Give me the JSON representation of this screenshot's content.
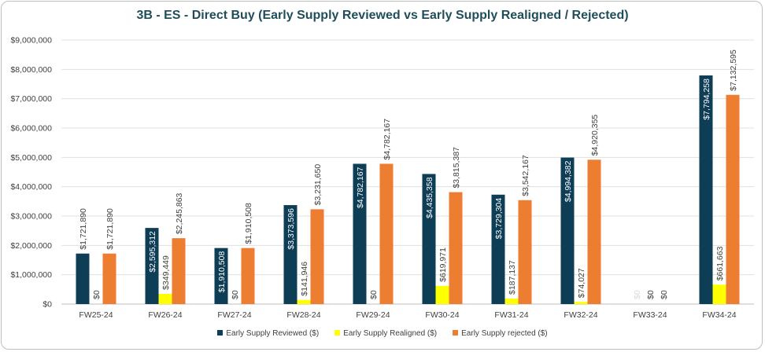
{
  "chart_data": {
    "type": "bar",
    "title": "3B - ES - Direct Buy (Early Supply Reviewed vs Early Supply Realigned / Rejected)",
    "categories": [
      "FW25-24",
      "FW26-24",
      "FW27-24",
      "FW28-24",
      "FW29-24",
      "FW30-24",
      "FW31-24",
      "FW32-24",
      "FW33-24",
      "FW34-24"
    ],
    "ylim": [
      0,
      9000000
    ],
    "yticks": [
      "$0",
      "$1,000,000",
      "$2,000,000",
      "$3,000,000",
      "$4,000,000",
      "$5,000,000",
      "$6,000,000",
      "$7,000,000",
      "$8,000,000",
      "$9,000,000"
    ],
    "grid": true,
    "legend_position": "bottom",
    "series": [
      {
        "name": "Early Supply Reviewed ($)",
        "color": "#0e3d56",
        "values": [
          1721890,
          2595312,
          1910508,
          3373596,
          4782167,
          4435358,
          3729304,
          4994382,
          0,
          7794258
        ],
        "labels": [
          "$1,721,890",
          "$2,595,312",
          "$1,910,508",
          "$3,373,596",
          "$4,782,167",
          "$4,435,358",
          "$3,729,304",
          "$4,994,382",
          "$0",
          "$7,794,258"
        ]
      },
      {
        "name": "Early Supply Realigned ($)",
        "color": "#ffff00",
        "values": [
          0,
          349449,
          0,
          141946,
          0,
          619971,
          187137,
          74027,
          0,
          661663
        ],
        "labels": [
          "$0",
          "$349,449",
          "$0",
          "$141,946",
          "$0",
          "$619,971",
          "$187,137",
          "$74,027",
          "$0",
          "$661,663"
        ]
      },
      {
        "name": "Early Supply rejected ($)",
        "color": "#ed7d31",
        "values": [
          1721890,
          2245863,
          1910508,
          3231650,
          4782167,
          3815387,
          3542167,
          4920355,
          0,
          7132595
        ],
        "labels": [
          "$1,721,890",
          "$2,245,863",
          "$1,910,508",
          "$3,231,650",
          "$4,782,167",
          "$3,815,387",
          "$3,542,167",
          "$4,920,355",
          "$0",
          "$7,132,595"
        ]
      }
    ]
  }
}
